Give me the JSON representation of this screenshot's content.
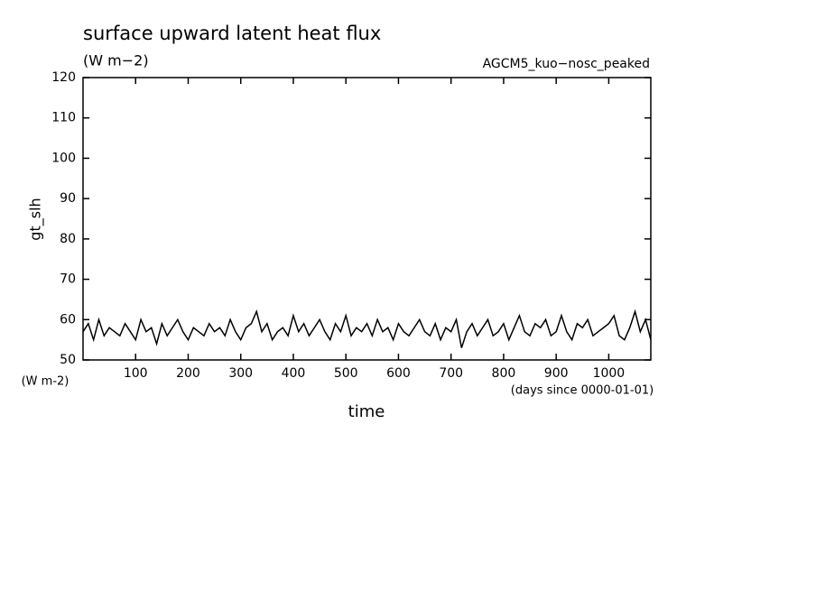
{
  "chart_data": {
    "type": "line",
    "title": "surface upward latent heat flux",
    "subtitle": "(W m−2)",
    "annotation": "AGCM5_kuo−nosc_peaked",
    "y_label": "gt_slh",
    "y_unit": "(W m-2)",
    "x_label": "time",
    "x_unit": "(days since 0000-01-01)",
    "xlim": [
      0,
      1080
    ],
    "ylim": [
      50,
      120
    ],
    "xticks": [
      100,
      200,
      300,
      400,
      500,
      600,
      700,
      800,
      900,
      1000
    ],
    "yticks": [
      50,
      60,
      70,
      80,
      90,
      100,
      110,
      120
    ],
    "series": [
      {
        "color": "#000000",
        "x": [
          0,
          10,
          20,
          30,
          40,
          50,
          60,
          70,
          80,
          90,
          100,
          110,
          120,
          130,
          140,
          150,
          160,
          170,
          180,
          190,
          200,
          210,
          220,
          230,
          240,
          250,
          260,
          270,
          280,
          290,
          300,
          310,
          320,
          330,
          340,
          350,
          360,
          370,
          380,
          390,
          400,
          410,
          420,
          430,
          440,
          450,
          460,
          470,
          480,
          490,
          500,
          510,
          520,
          530,
          540,
          550,
          560,
          570,
          580,
          590,
          600,
          610,
          620,
          630,
          640,
          650,
          660,
          670,
          680,
          690,
          700,
          710,
          720,
          730,
          740,
          750,
          760,
          770,
          780,
          790,
          800,
          810,
          820,
          830,
          840,
          850,
          860,
          870,
          880,
          890,
          900,
          910,
          920,
          930,
          940,
          950,
          960,
          970,
          980,
          990,
          1000,
          1010,
          1020,
          1030,
          1040,
          1050,
          1060,
          1070,
          1080
        ],
        "values": [
          57,
          59,
          55,
          60,
          56,
          58,
          57,
          56,
          59,
          57,
          55,
          60,
          57,
          58,
          54,
          59,
          56,
          58,
          60,
          57,
          55,
          58,
          57,
          56,
          59,
          57,
          58,
          56,
          60,
          57,
          55,
          58,
          59,
          62,
          57,
          59,
          55,
          57,
          58,
          56,
          61,
          57,
          59,
          56,
          58,
          60,
          57,
          55,
          59,
          57,
          61,
          56,
          58,
          57,
          59,
          56,
          60,
          57,
          58,
          55,
          59,
          57,
          56,
          58,
          60,
          57,
          56,
          59,
          55,
          58,
          57,
          60,
          53,
          57,
          59,
          56,
          58,
          60,
          56,
          57,
          59,
          55,
          58,
          61,
          57,
          56,
          59,
          58,
          60,
          56,
          57,
          61,
          57,
          55,
          59,
          58,
          60,
          56,
          57,
          58,
          59,
          61,
          56,
          55,
          58,
          62,
          57,
          60,
          55
        ]
      }
    ]
  }
}
